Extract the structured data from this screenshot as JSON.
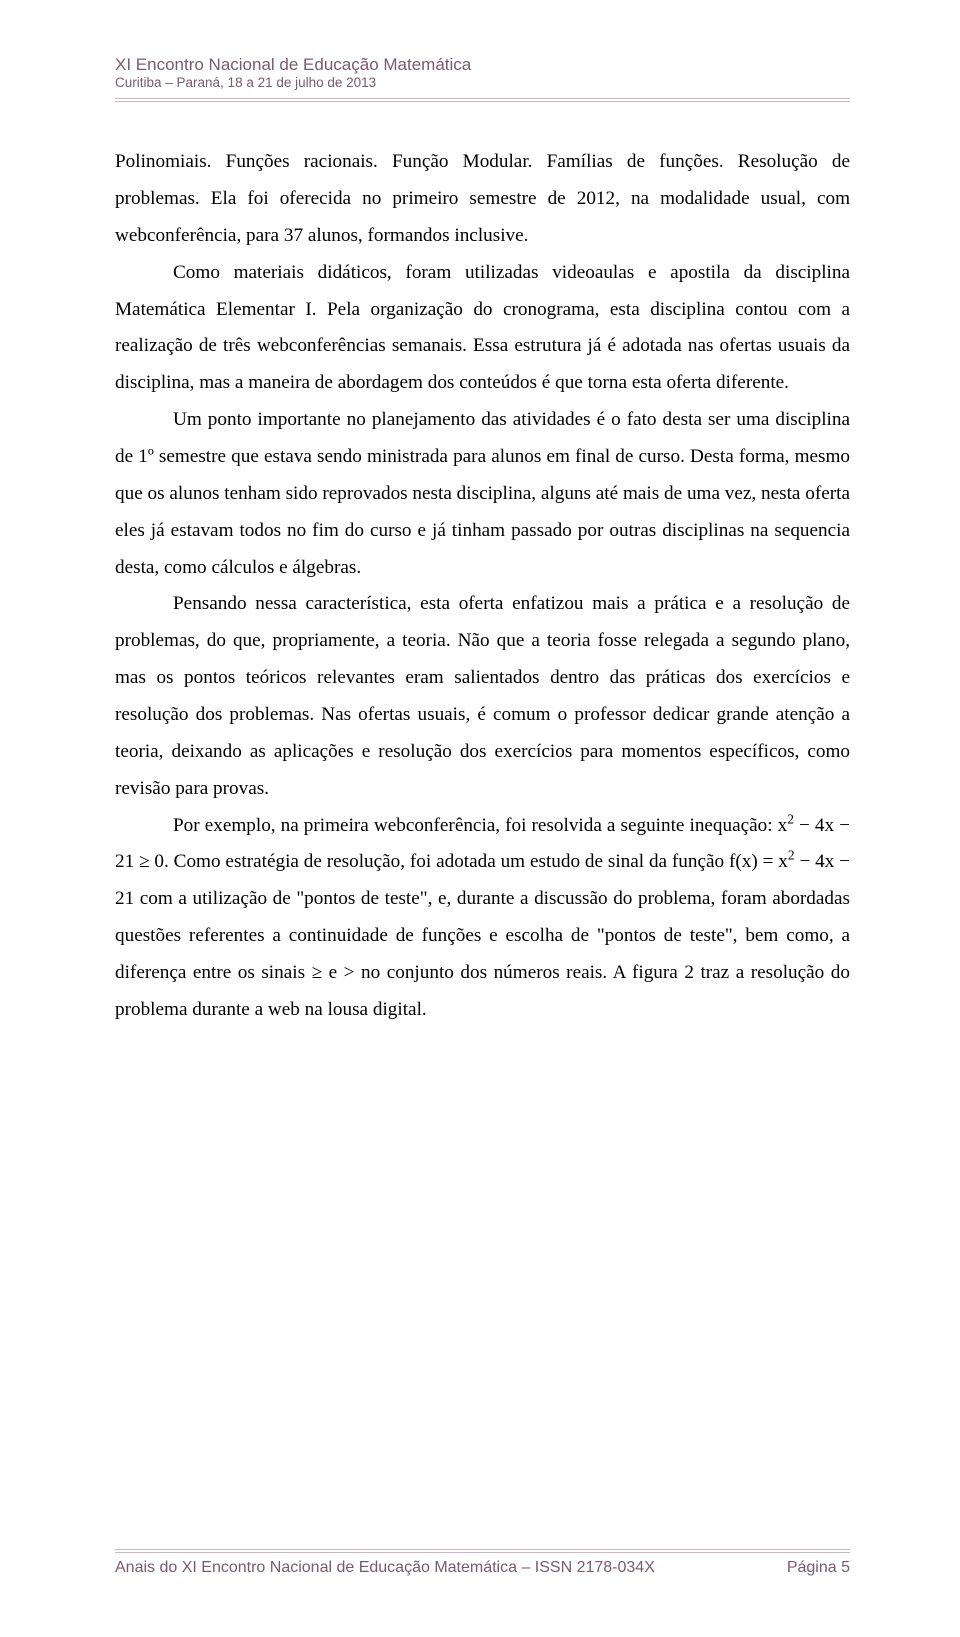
{
  "colors": {
    "header_text": "#7a5a6e",
    "rule": "#c9b6c2",
    "body_text": "#000000",
    "background": "#ffffff"
  },
  "typography": {
    "header_family": "Arial",
    "header_title_pt": 13,
    "header_sub_pt": 10,
    "body_family": "Times New Roman",
    "body_pt": 14,
    "body_line_height": 1.92
  },
  "header": {
    "title": "XI Encontro Nacional de Educação Matemática",
    "subtitle": "Curitiba – Paraná, 18 a 21 de julho de 2013"
  },
  "body": {
    "p1_a": "Polinomiais. Funções racionais. Função Modular. Famílias de funções. Resolução de problemas.",
    "p1_b": " Ela foi oferecida no primeiro semestre de 2012, na modalidade usual, com webconferência, para 37 alunos, formandos inclusive.",
    "p2": "Como materiais didáticos, foram utilizadas videoaulas e apostila da disciplina Matemática Elementar I. Pela organização do cronograma, esta disciplina contou com a realização de três webconferências semanais. Essa estrutura já é adotada nas ofertas usuais da disciplina, mas a maneira de abordagem dos conteúdos é que torna esta oferta diferente.",
    "p3": "Um ponto importante no planejamento das atividades é o fato desta ser uma disciplina de 1º semestre que estava sendo ministrada para alunos em final de curso. Desta forma, mesmo que os alunos tenham sido reprovados nesta disciplina, alguns até mais de uma vez, nesta oferta eles já estavam todos no fim do curso e já tinham passado por outras disciplinas na sequencia desta, como cálculos e álgebras.",
    "p4": "Pensando nessa característica, esta oferta enfatizou mais a prática e a resolução de problemas, do que, propriamente, a teoria. Não que a teoria fosse relegada a segundo plano, mas os pontos teóricos relevantes eram salientados dentro das práticas dos exercícios e resolução dos problemas. Nas ofertas usuais, é comum o professor dedicar grande atenção a teoria, deixando as aplicações e resolução dos exercícios para momentos específicos, como revisão para provas.",
    "p5_a": "Por exemplo, na primeira webconferência, foi resolvida a seguinte inequação: ",
    "p5_ineq": "x² − 4x − 21 ≥ 0",
    "p5_b": ". Como estratégia de resolução, foi adotada um estudo de sinal da função ",
    "p5_func": "f(x) = x² − 4x − 21",
    "p5_c": " com a utilização de \"pontos de teste\", e, durante a discussão do problema, foram abordadas questões referentes a continuidade de funções e escolha de \"pontos de teste\", bem como, a diferença entre os sinais ≥ e > no conjunto dos números reais. A figura 2 traz a resolução do problema durante a web na lousa digital."
  },
  "footer": {
    "left": "Anais do XI Encontro Nacional de Educação Matemática – ISSN 2178-034X",
    "right": "Página 5"
  }
}
